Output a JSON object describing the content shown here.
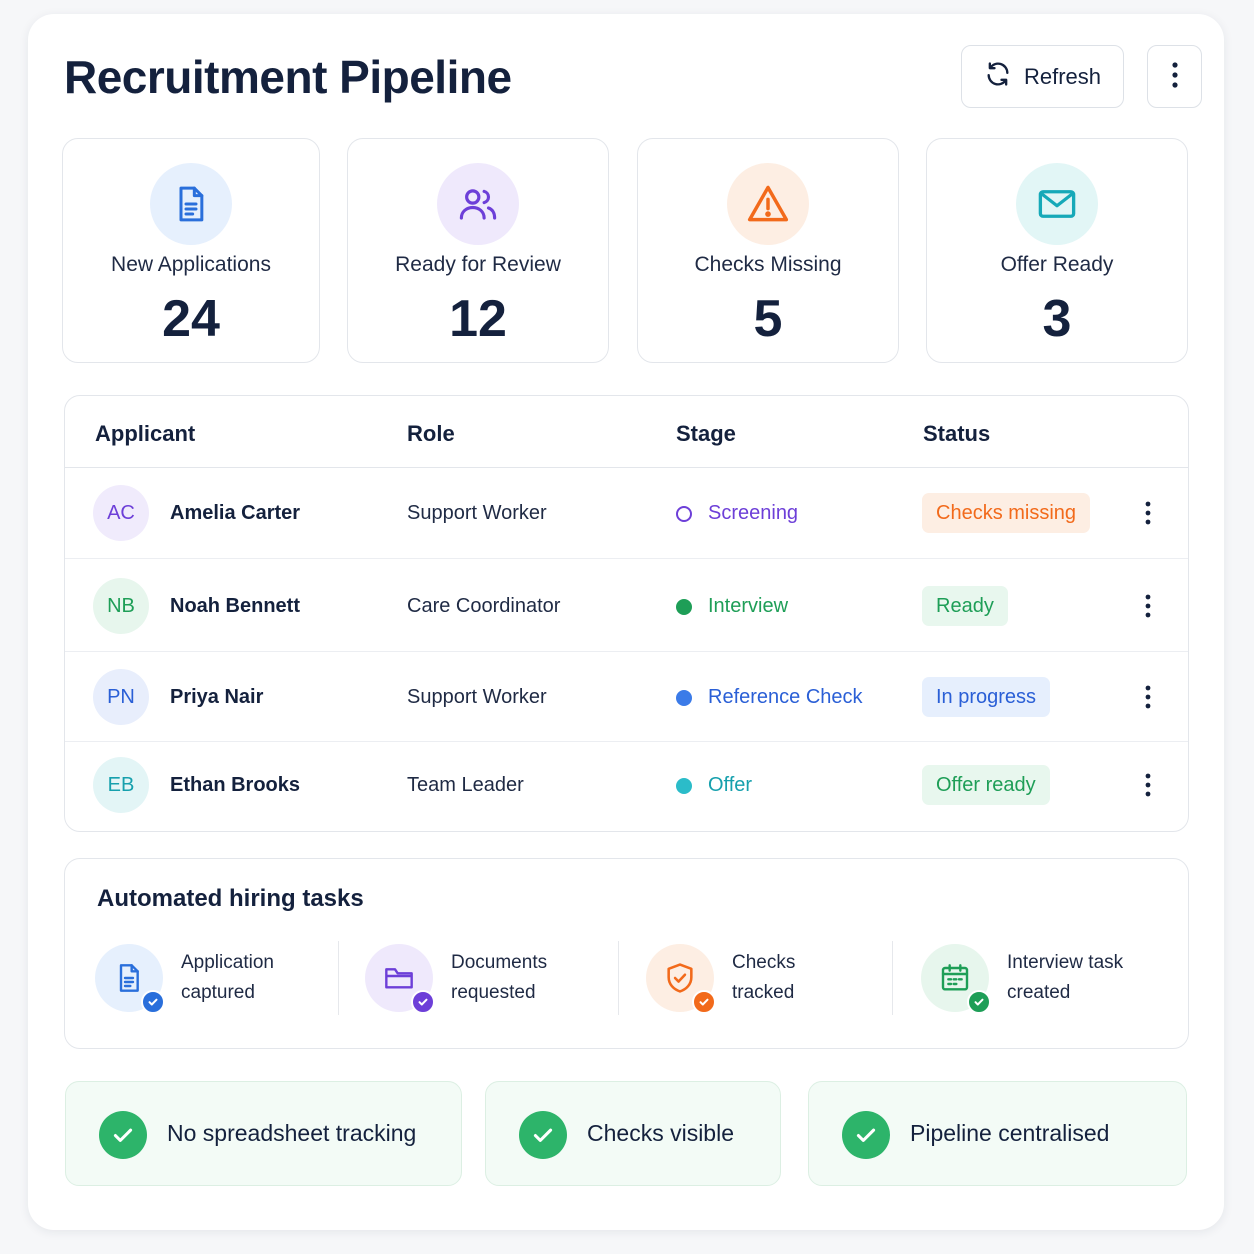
{
  "header": {
    "title": "Recruitment Pipeline",
    "refresh_label": "Refresh",
    "refresh_icon": "refresh-icon",
    "more_icon": "vertical-dots-icon"
  },
  "stats": [
    {
      "label": "New Applications",
      "value": "24",
      "icon": "document-icon",
      "color": "#2a6fdb",
      "bg": "#e6f0fd"
    },
    {
      "label": "Ready for Review",
      "value": "12",
      "icon": "users-icon",
      "color": "#6d3fd8",
      "bg": "#efe9fc"
    },
    {
      "label": "Checks Missing",
      "value": "5",
      "icon": "warning-icon",
      "color": "#f26a1b",
      "bg": "#fdeee3"
    },
    {
      "label": "Offer Ready",
      "value": "3",
      "icon": "mail-icon",
      "color": "#16a9b8",
      "bg": "#e2f6f6"
    }
  ],
  "table": {
    "headers": {
      "applicant": "Applicant",
      "role": "Role",
      "stage": "Stage",
      "status": "Status"
    },
    "rows": [
      {
        "initials": "AC",
        "name": "Amelia Carter",
        "role": "Support Worker",
        "stage": "Screening",
        "status": "Checks missing",
        "avatar_color": "#6d3fd8",
        "avatar_bg": "#f0ebfc",
        "stage_color": "#6d3fd8",
        "stage_dot": "ring",
        "status_color": "#f26a1b",
        "status_bg": "#fdeee3"
      },
      {
        "initials": "NB",
        "name": "Noah Bennett",
        "role": "Care Coordinator",
        "stage": "Interview",
        "status": "Ready",
        "avatar_color": "#1e9e57",
        "avatar_bg": "#e7f6ed",
        "stage_color": "#1e9e57",
        "stage_dot": "filled",
        "status_color": "#1e9e57",
        "status_bg": "#e8f7ee"
      },
      {
        "initials": "PN",
        "name": "Priya Nair",
        "role": "Support Worker",
        "stage": "Reference Check",
        "status": "In progress",
        "avatar_color": "#2a5fd6",
        "avatar_bg": "#e8eefc",
        "stage_color": "#2a5fd6",
        "stage_dot": "filled",
        "status_color": "#2a5fd6",
        "status_bg": "#e6effd"
      },
      {
        "initials": "EB",
        "name": "Ethan Brooks",
        "role": "Team Leader",
        "stage": "Offer",
        "status": "Offer ready",
        "avatar_color": "#16a0ad",
        "avatar_bg": "#e3f5f6",
        "stage_color": "#16a0ad",
        "stage_dot": "filled",
        "status_color": "#1e9e57",
        "status_bg": "#e8f7ee"
      }
    ]
  },
  "tasks": {
    "title": "Automated hiring tasks",
    "items": [
      {
        "line1": "Application",
        "line2": "captured",
        "icon": "document-icon",
        "color": "#2a6fdb",
        "bg": "#e6f0fd"
      },
      {
        "line1": "Documents",
        "line2": "requested",
        "icon": "folder-icon",
        "color": "#6d3fd8",
        "bg": "#efe9fc"
      },
      {
        "line1": "Checks",
        "line2": "tracked",
        "icon": "shield-icon",
        "color": "#f26a1b",
        "bg": "#fdeee3"
      },
      {
        "line1": "Interview task",
        "line2": "created",
        "icon": "calendar-icon",
        "color": "#1e9e57",
        "bg": "#e7f6ed"
      }
    ]
  },
  "benefits": [
    {
      "label": "No spreadsheet tracking",
      "icon": "check-icon"
    },
    {
      "label": "Checks visible",
      "icon": "check-icon"
    },
    {
      "label": "Pipeline centralised",
      "icon": "check-icon"
    }
  ]
}
